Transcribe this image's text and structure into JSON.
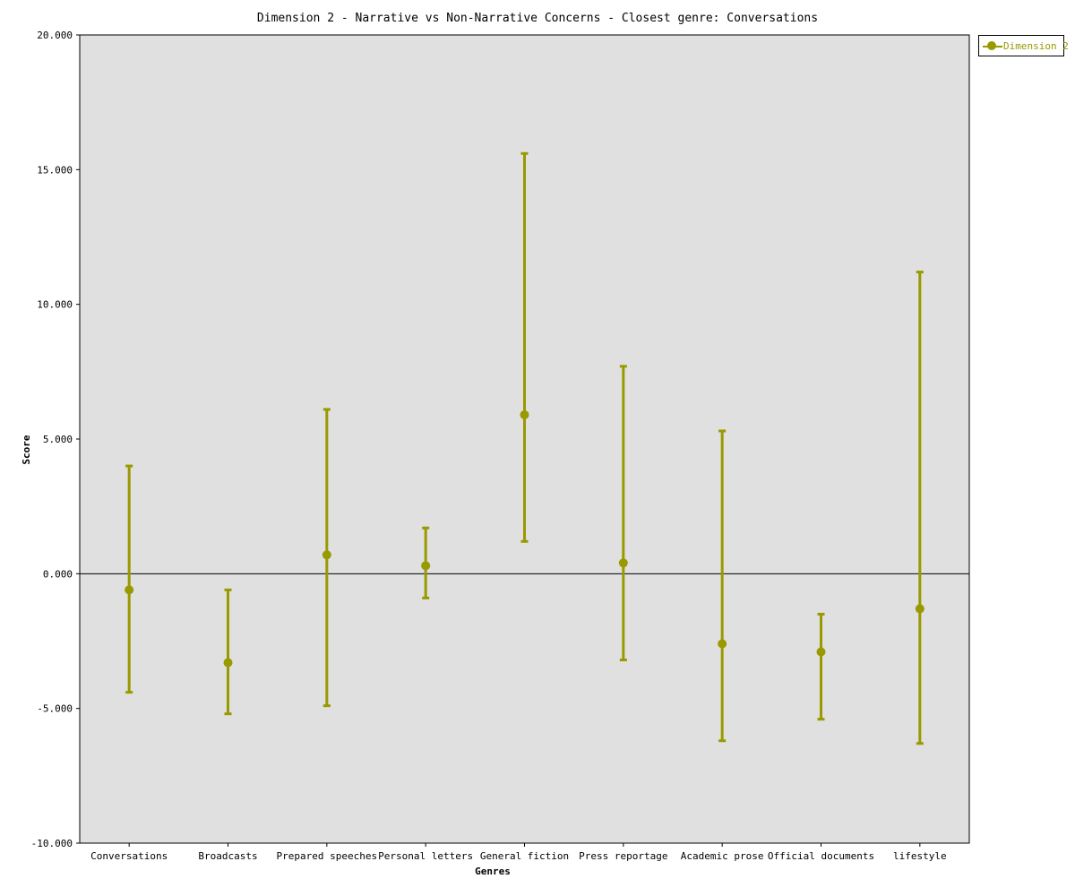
{
  "chart_data": {
    "type": "scatter",
    "title": "Dimension 2 - Narrative vs Non-Narrative Concerns - Closest genre: Conversations",
    "xlabel": "Genres",
    "ylabel": "Score",
    "ylim": [
      -10,
      20
    ],
    "yticks": [
      -10,
      -5,
      0,
      5,
      10,
      15,
      20
    ],
    "ytick_labels": [
      "-10.000",
      "-5.000",
      "0.000",
      "5.000",
      "10.000",
      "15.000",
      "20.000"
    ],
    "grid": false,
    "legend_position": "top-right outside",
    "categories": [
      "Conversations",
      "Broadcasts",
      "Prepared speeches",
      "Personal letters",
      "General fiction",
      "Press reportage",
      "Academic prose",
      "Official documents",
      "lifestyle"
    ],
    "series": [
      {
        "name": "Dimension 2",
        "color": "#999900",
        "values": [
          -0.6,
          -3.3,
          0.7,
          0.3,
          5.9,
          0.4,
          -2.6,
          -2.9,
          -1.3
        ],
        "error_low": [
          -4.4,
          -5.2,
          -4.9,
          -0.9,
          1.2,
          -3.2,
          -6.2,
          -5.4,
          -6.3
        ],
        "error_high": [
          4.0,
          -0.6,
          6.1,
          1.7,
          15.6,
          7.7,
          5.3,
          -1.5,
          11.2
        ]
      }
    ],
    "zero_line": true,
    "plot_background": "#e0e0e0"
  }
}
